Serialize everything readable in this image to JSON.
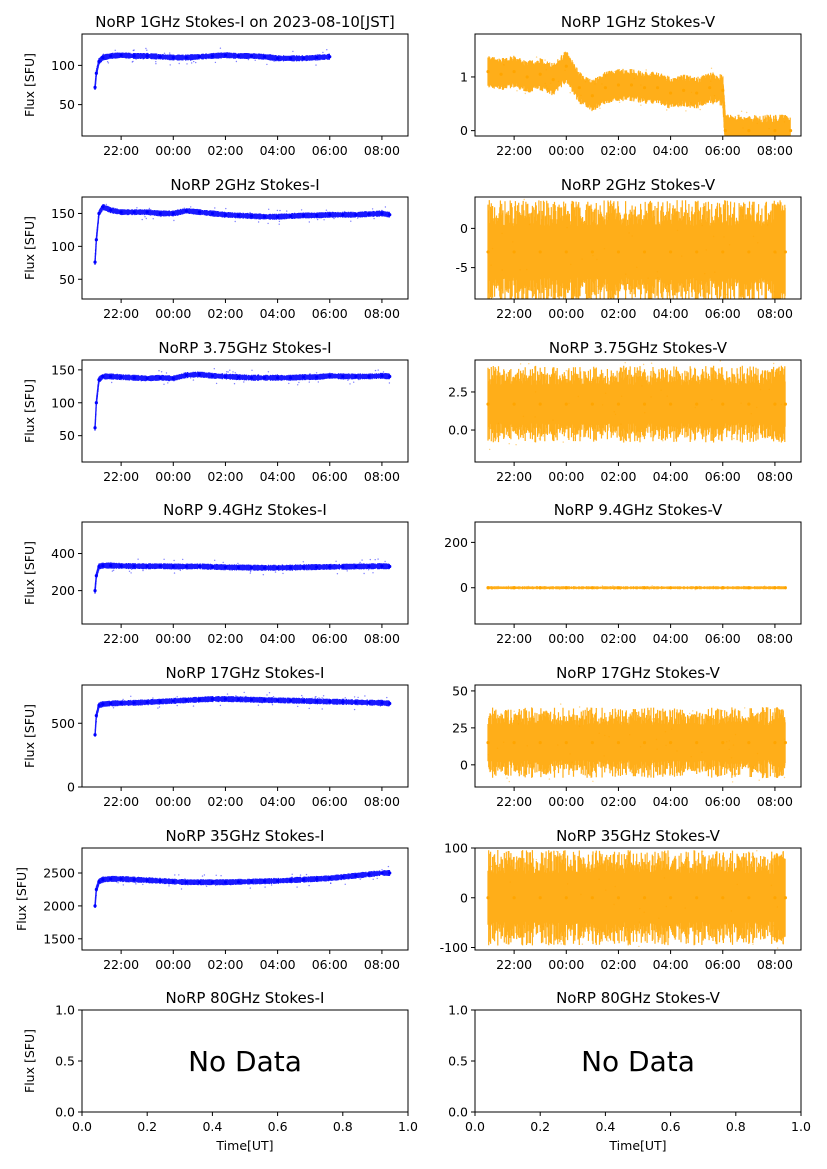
{
  "chart_data": [
    {
      "id": "p1i",
      "type": "scatter",
      "title": "NoRP 1GHz Stokes-I on 2023-08-10[JST]",
      "ylabel": "Flux [SFU]",
      "xlabel": "",
      "xtick_labels": [
        "22:00",
        "00:00",
        "02:00",
        "04:00",
        "06:00",
        "08:00"
      ],
      "ylim": [
        10,
        140
      ],
      "yticks": [
        50,
        100
      ],
      "color": "#0000ff",
      "series": [
        {
          "x": [
            21.0,
            21.05,
            21.15,
            21.3,
            21.6,
            22.0,
            22.5,
            23.0,
            23.5,
            24.0,
            24.5,
            25.0,
            25.5,
            26.0,
            26.5,
            27.0,
            27.5,
            28.0,
            28.5,
            29.0,
            29.5,
            30.0
          ],
          "y": [
            72,
            90,
            105,
            110,
            112,
            113,
            112,
            112,
            111,
            110,
            110,
            111,
            112,
            113,
            112,
            112,
            111,
            109,
            109,
            109,
            110,
            111
          ]
        }
      ]
    },
    {
      "id": "p1v",
      "type": "scatter",
      "title": "NoRP 1GHz Stokes-V",
      "ylabel": "",
      "xlabel": "",
      "xtick_labels": [
        "22:00",
        "00:00",
        "02:00",
        "04:00",
        "06:00",
        "08:00"
      ],
      "ylim": [
        -0.1,
        1.8
      ],
      "yticks": [
        0,
        1
      ],
      "color": "#ffa500",
      "series": [
        {
          "x": [
            21.0,
            21.5,
            22.0,
            22.5,
            23.0,
            23.5,
            24.0,
            24.5,
            25.0,
            25.5,
            26.0,
            26.5,
            27.0,
            27.5,
            28.0,
            28.5,
            29.0,
            29.5,
            30.0,
            30.1,
            31.0,
            32.0,
            32.6
          ],
          "y": [
            1.1,
            1.05,
            1.1,
            1.0,
            1.05,
            0.95,
            1.2,
            0.8,
            0.65,
            0.8,
            0.85,
            0.85,
            0.8,
            0.8,
            0.7,
            0.75,
            0.7,
            0.8,
            0.75,
            0.0,
            0.0,
            0.0,
            0.0
          ]
        }
      ]
    },
    {
      "id": "p2i",
      "type": "scatter",
      "title": "NoRP 2GHz Stokes-I",
      "ylabel": "Flux [SFU]",
      "xlabel": "",
      "xtick_labels": [
        "22:00",
        "00:00",
        "02:00",
        "04:00",
        "06:00",
        "08:00"
      ],
      "ylim": [
        20,
        175
      ],
      "yticks": [
        50,
        100,
        150
      ],
      "color": "#0000ff",
      "series": [
        {
          "x": [
            21.0,
            21.05,
            21.15,
            21.3,
            21.6,
            22.0,
            22.5,
            23.0,
            23.5,
            24.0,
            24.5,
            25.0,
            25.5,
            26.0,
            26.5,
            27.0,
            27.5,
            28.0,
            28.5,
            29.0,
            29.5,
            30.0,
            30.5,
            31.0,
            31.5,
            32.0,
            32.3
          ],
          "y": [
            76,
            110,
            150,
            160,
            155,
            152,
            152,
            152,
            150,
            150,
            154,
            152,
            150,
            148,
            147,
            146,
            145,
            145,
            146,
            147,
            147,
            148,
            148,
            148,
            149,
            150,
            148
          ]
        }
      ]
    },
    {
      "id": "p2v",
      "type": "scatter",
      "title": "NoRP 2GHz Stokes-V",
      "ylabel": "",
      "xlabel": "",
      "xtick_labels": [
        "22:00",
        "00:00",
        "02:00",
        "04:00",
        "06:00",
        "08:00"
      ],
      "ylim": [
        -9,
        4
      ],
      "yticks": [
        -5,
        0
      ],
      "color": "#ffa500",
      "series": [
        {
          "x": [
            21.0,
            22.0,
            23.0,
            24.0,
            25.0,
            26.0,
            27.0,
            28.0,
            29.0,
            30.0,
            31.0,
            32.0,
            32.4
          ],
          "y": [
            -3,
            -3,
            -3,
            -3,
            -3,
            -3,
            -3,
            -3,
            -3,
            -3,
            -3,
            -3,
            -3
          ]
        }
      ]
    },
    {
      "id": "p3i",
      "type": "scatter",
      "title": "NoRP 3.75GHz Stokes-I",
      "ylabel": "Flux [SFU]",
      "xlabel": "",
      "xtick_labels": [
        "22:00",
        "00:00",
        "02:00",
        "04:00",
        "06:00",
        "08:00"
      ],
      "ylim": [
        10,
        165
      ],
      "yticks": [
        50,
        100,
        150
      ],
      "color": "#0000ff",
      "series": [
        {
          "x": [
            21.0,
            21.05,
            21.15,
            21.3,
            21.6,
            22.0,
            22.5,
            23.0,
            23.5,
            24.0,
            24.5,
            25.0,
            25.5,
            26.0,
            26.5,
            27.0,
            27.5,
            28.0,
            28.5,
            29.0,
            29.5,
            30.0,
            30.5,
            31.0,
            31.5,
            32.0,
            32.3
          ],
          "y": [
            62,
            100,
            135,
            140,
            140,
            139,
            138,
            137,
            138,
            137,
            142,
            143,
            141,
            140,
            139,
            138,
            138,
            138,
            138,
            139,
            139,
            141,
            140,
            140,
            140,
            141,
            140
          ]
        }
      ]
    },
    {
      "id": "p3v",
      "type": "scatter",
      "title": "NoRP 3.75GHz Stokes-V",
      "ylabel": "",
      "xlabel": "",
      "xtick_labels": [
        "22:00",
        "00:00",
        "02:00",
        "04:00",
        "06:00",
        "08:00"
      ],
      "ylim": [
        -2.1,
        4.6
      ],
      "yticks": [
        0.0,
        2.5
      ],
      "ytick_labels": [
        "0.0",
        "2.5"
      ],
      "color": "#ffa500",
      "series": [
        {
          "x": [
            21.0,
            22.0,
            23.0,
            24.0,
            25.0,
            26.0,
            27.0,
            28.0,
            29.0,
            30.0,
            31.0,
            32.0,
            32.4
          ],
          "y": [
            1.7,
            1.7,
            1.7,
            1.7,
            1.7,
            1.7,
            1.7,
            1.7,
            1.7,
            1.7,
            1.7,
            1.7,
            1.7
          ]
        }
      ]
    },
    {
      "id": "p4i",
      "type": "scatter",
      "title": "NoRP 9.4GHz Stokes-I",
      "ylabel": "Flux [SFU]",
      "xlabel": "",
      "xtick_labels": [
        "22:00",
        "00:00",
        "02:00",
        "04:00",
        "06:00",
        "08:00"
      ],
      "ylim": [
        20,
        570
      ],
      "yticks": [
        200,
        400
      ],
      "color": "#0000ff",
      "series": [
        {
          "x": [
            21.0,
            21.05,
            21.15,
            21.3,
            21.6,
            22.0,
            22.5,
            23.0,
            23.5,
            24.0,
            24.5,
            25.0,
            25.5,
            26.0,
            26.5,
            27.0,
            27.5,
            28.0,
            28.5,
            29.0,
            29.5,
            30.0,
            30.5,
            31.0,
            31.5,
            32.0,
            32.3
          ],
          "y": [
            200,
            280,
            330,
            335,
            335,
            333,
            332,
            331,
            332,
            330,
            330,
            331,
            328,
            326,
            325,
            324,
            323,
            323,
            324,
            326,
            327,
            328,
            329,
            330,
            331,
            332,
            330
          ]
        }
      ]
    },
    {
      "id": "p4v",
      "type": "scatter",
      "title": "NoRP 9.4GHz Stokes-V",
      "ylabel": "",
      "xlabel": "",
      "xtick_labels": [
        "22:00",
        "00:00",
        "02:00",
        "04:00",
        "06:00",
        "08:00"
      ],
      "ylim": [
        -160,
        290
      ],
      "yticks": [
        0,
        200
      ],
      "color": "#ffa500",
      "series": [
        {
          "x": [
            21.0,
            22.0,
            23.0,
            24.0,
            25.0,
            26.0,
            27.0,
            28.0,
            29.0,
            30.0,
            31.0,
            32.0,
            32.4
          ],
          "y": [
            0,
            0,
            0,
            0,
            0,
            0,
            0,
            0,
            0,
            0,
            0,
            0,
            0
          ]
        }
      ]
    },
    {
      "id": "p5i",
      "type": "scatter",
      "title": "NoRP 17GHz Stokes-I",
      "ylabel": "Flux [SFU]",
      "xlabel": "",
      "xtick_labels": [
        "22:00",
        "00:00",
        "02:00",
        "04:00",
        "06:00",
        "08:00"
      ],
      "ylim": [
        0,
        800
      ],
      "yticks": [
        0,
        500
      ],
      "color": "#0000ff",
      "series": [
        {
          "x": [
            21.0,
            21.05,
            21.15,
            21.3,
            21.6,
            22.0,
            22.5,
            23.0,
            23.5,
            24.0,
            24.5,
            25.0,
            25.5,
            26.0,
            26.5,
            27.0,
            27.5,
            28.0,
            28.5,
            29.0,
            29.5,
            30.0,
            30.5,
            31.0,
            31.5,
            32.0,
            32.3
          ],
          "y": [
            410,
            560,
            640,
            650,
            655,
            658,
            660,
            665,
            670,
            675,
            680,
            685,
            690,
            690,
            688,
            685,
            682,
            680,
            678,
            675,
            672,
            670,
            668,
            665,
            662,
            660,
            655
          ]
        }
      ]
    },
    {
      "id": "p5v",
      "type": "scatter",
      "title": "NoRP 17GHz Stokes-V",
      "ylabel": "",
      "xlabel": "",
      "xtick_labels": [
        "22:00",
        "00:00",
        "02:00",
        "04:00",
        "06:00",
        "08:00"
      ],
      "ylim": [
        -15,
        54
      ],
      "yticks": [
        0,
        25,
        50
      ],
      "color": "#ffa500",
      "series": [
        {
          "x": [
            21.0,
            22.0,
            23.0,
            24.0,
            25.0,
            26.0,
            27.0,
            28.0,
            29.0,
            30.0,
            31.0,
            32.0,
            32.4
          ],
          "y": [
            15,
            15,
            15,
            15,
            15,
            15,
            15,
            15,
            15,
            15,
            15,
            15,
            15
          ]
        }
      ]
    },
    {
      "id": "p6i",
      "type": "scatter",
      "title": "NoRP 35GHz Stokes-I",
      "ylabel": "Flux [SFU]",
      "xlabel": "",
      "xtick_labels": [
        "22:00",
        "00:00",
        "02:00",
        "04:00",
        "06:00",
        "08:00"
      ],
      "ylim": [
        1330,
        2880
      ],
      "yticks": [
        1500,
        2000,
        2500
      ],
      "color": "#0000ff",
      "series": [
        {
          "x": [
            21.0,
            21.05,
            21.15,
            21.3,
            21.6,
            22.0,
            22.5,
            23.0,
            23.5,
            24.0,
            24.5,
            25.0,
            25.5,
            26.0,
            26.5,
            27.0,
            27.5,
            28.0,
            28.5,
            29.0,
            29.5,
            30.0,
            30.5,
            31.0,
            31.5,
            32.0,
            32.3
          ],
          "y": [
            2000,
            2250,
            2370,
            2400,
            2410,
            2410,
            2400,
            2390,
            2380,
            2370,
            2360,
            2360,
            2360,
            2360,
            2365,
            2370,
            2375,
            2380,
            2390,
            2400,
            2410,
            2420,
            2440,
            2460,
            2480,
            2500,
            2500
          ]
        }
      ]
    },
    {
      "id": "p6v",
      "type": "scatter",
      "title": "NoRP 35GHz Stokes-V",
      "ylabel": "",
      "xlabel": "",
      "xtick_labels": [
        "22:00",
        "00:00",
        "02:00",
        "04:00",
        "06:00",
        "08:00"
      ],
      "ylim": [
        -105,
        100
      ],
      "yticks": [
        -100,
        0,
        100
      ],
      "color": "#ffa500",
      "series": [
        {
          "x": [
            21.0,
            22.0,
            23.0,
            24.0,
            25.0,
            26.0,
            27.0,
            28.0,
            29.0,
            30.0,
            31.0,
            32.0,
            32.4
          ],
          "y": [
            0,
            0,
            0,
            0,
            0,
            0,
            0,
            0,
            0,
            0,
            0,
            0,
            0
          ]
        }
      ]
    },
    {
      "id": "p7i",
      "type": "scatter",
      "title": "NoRP 80GHz Stokes-I",
      "ylabel": "Flux [SFU]",
      "xlabel": "Time[UT]",
      "xlim": [
        0,
        1
      ],
      "xticks": [
        0.0,
        0.2,
        0.4,
        0.6,
        0.8,
        1.0
      ],
      "xtick_labels": [
        "0.0",
        "0.2",
        "0.4",
        "0.6",
        "0.8",
        "1.0"
      ],
      "ylim": [
        0,
        1
      ],
      "yticks": [
        0.0,
        0.5,
        1.0
      ],
      "ytick_labels": [
        "0.0",
        "0.5",
        "1.0"
      ],
      "annotation": "No Data",
      "series": []
    },
    {
      "id": "p7v",
      "type": "scatter",
      "title": "NoRP 80GHz Stokes-V",
      "ylabel": "",
      "xlabel": "Time[UT]",
      "xlim": [
        0,
        1
      ],
      "xticks": [
        0.0,
        0.2,
        0.4,
        0.6,
        0.8,
        1.0
      ],
      "xtick_labels": [
        "0.0",
        "0.2",
        "0.4",
        "0.6",
        "0.8",
        "1.0"
      ],
      "ylim": [
        0,
        1
      ],
      "yticks": [
        0.0,
        0.5,
        1.0
      ],
      "ytick_labels": [
        "0.0",
        "0.5",
        "1.0"
      ],
      "annotation": "No Data",
      "series": []
    }
  ]
}
